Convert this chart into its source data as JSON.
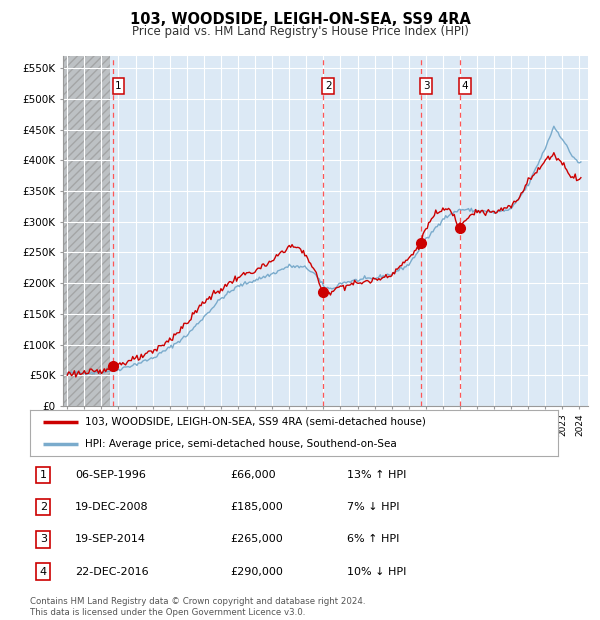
{
  "title": "103, WOODSIDE, LEIGH-ON-SEA, SS9 4RA",
  "subtitle": "Price paid vs. HM Land Registry's House Price Index (HPI)",
  "plot_bg_color": "#dce9f5",
  "ylabel_ticks": [
    "£0",
    "£50K",
    "£100K",
    "£150K",
    "£200K",
    "£250K",
    "£300K",
    "£350K",
    "£400K",
    "£450K",
    "£500K",
    "£550K"
  ],
  "ytick_values": [
    0,
    50000,
    100000,
    150000,
    200000,
    250000,
    300000,
    350000,
    400000,
    450000,
    500000,
    550000
  ],
  "ylim": [
    0,
    570000
  ],
  "xlim_start": 1993.75,
  "xlim_end": 2024.5,
  "hatch_start": 1993.75,
  "hatch_end": 1996.5,
  "sale_points": [
    {
      "year": 1996.69,
      "price": 66000,
      "label": "1"
    },
    {
      "year": 2008.97,
      "price": 185000,
      "label": "2"
    },
    {
      "year": 2014.72,
      "price": 265000,
      "label": "3"
    },
    {
      "year": 2016.98,
      "price": 290000,
      "label": "4"
    }
  ],
  "vline_color": "#ff5555",
  "sale_marker_color": "#cc0000",
  "hpi_line_color": "#7aabcc",
  "price_line_color": "#cc0000",
  "legend_entries": [
    "103, WOODSIDE, LEIGH-ON-SEA, SS9 4RA (semi-detached house)",
    "HPI: Average price, semi-detached house, Southend-on-Sea"
  ],
  "table_rows": [
    {
      "num": "1",
      "date": "06-SEP-1996",
      "price": "£66,000",
      "hpi": "13% ↑ HPI"
    },
    {
      "num": "2",
      "date": "19-DEC-2008",
      "price": "£185,000",
      "hpi": "7% ↓ HPI"
    },
    {
      "num": "3",
      "date": "19-SEP-2014",
      "price": "£265,000",
      "hpi": "6% ↑ HPI"
    },
    {
      "num": "4",
      "date": "22-DEC-2016",
      "price": "£290,000",
      "hpi": "10% ↓ HPI"
    }
  ],
  "footer": "Contains HM Land Registry data © Crown copyright and database right 2024.\nThis data is licensed under the Open Government Licence v3.0."
}
